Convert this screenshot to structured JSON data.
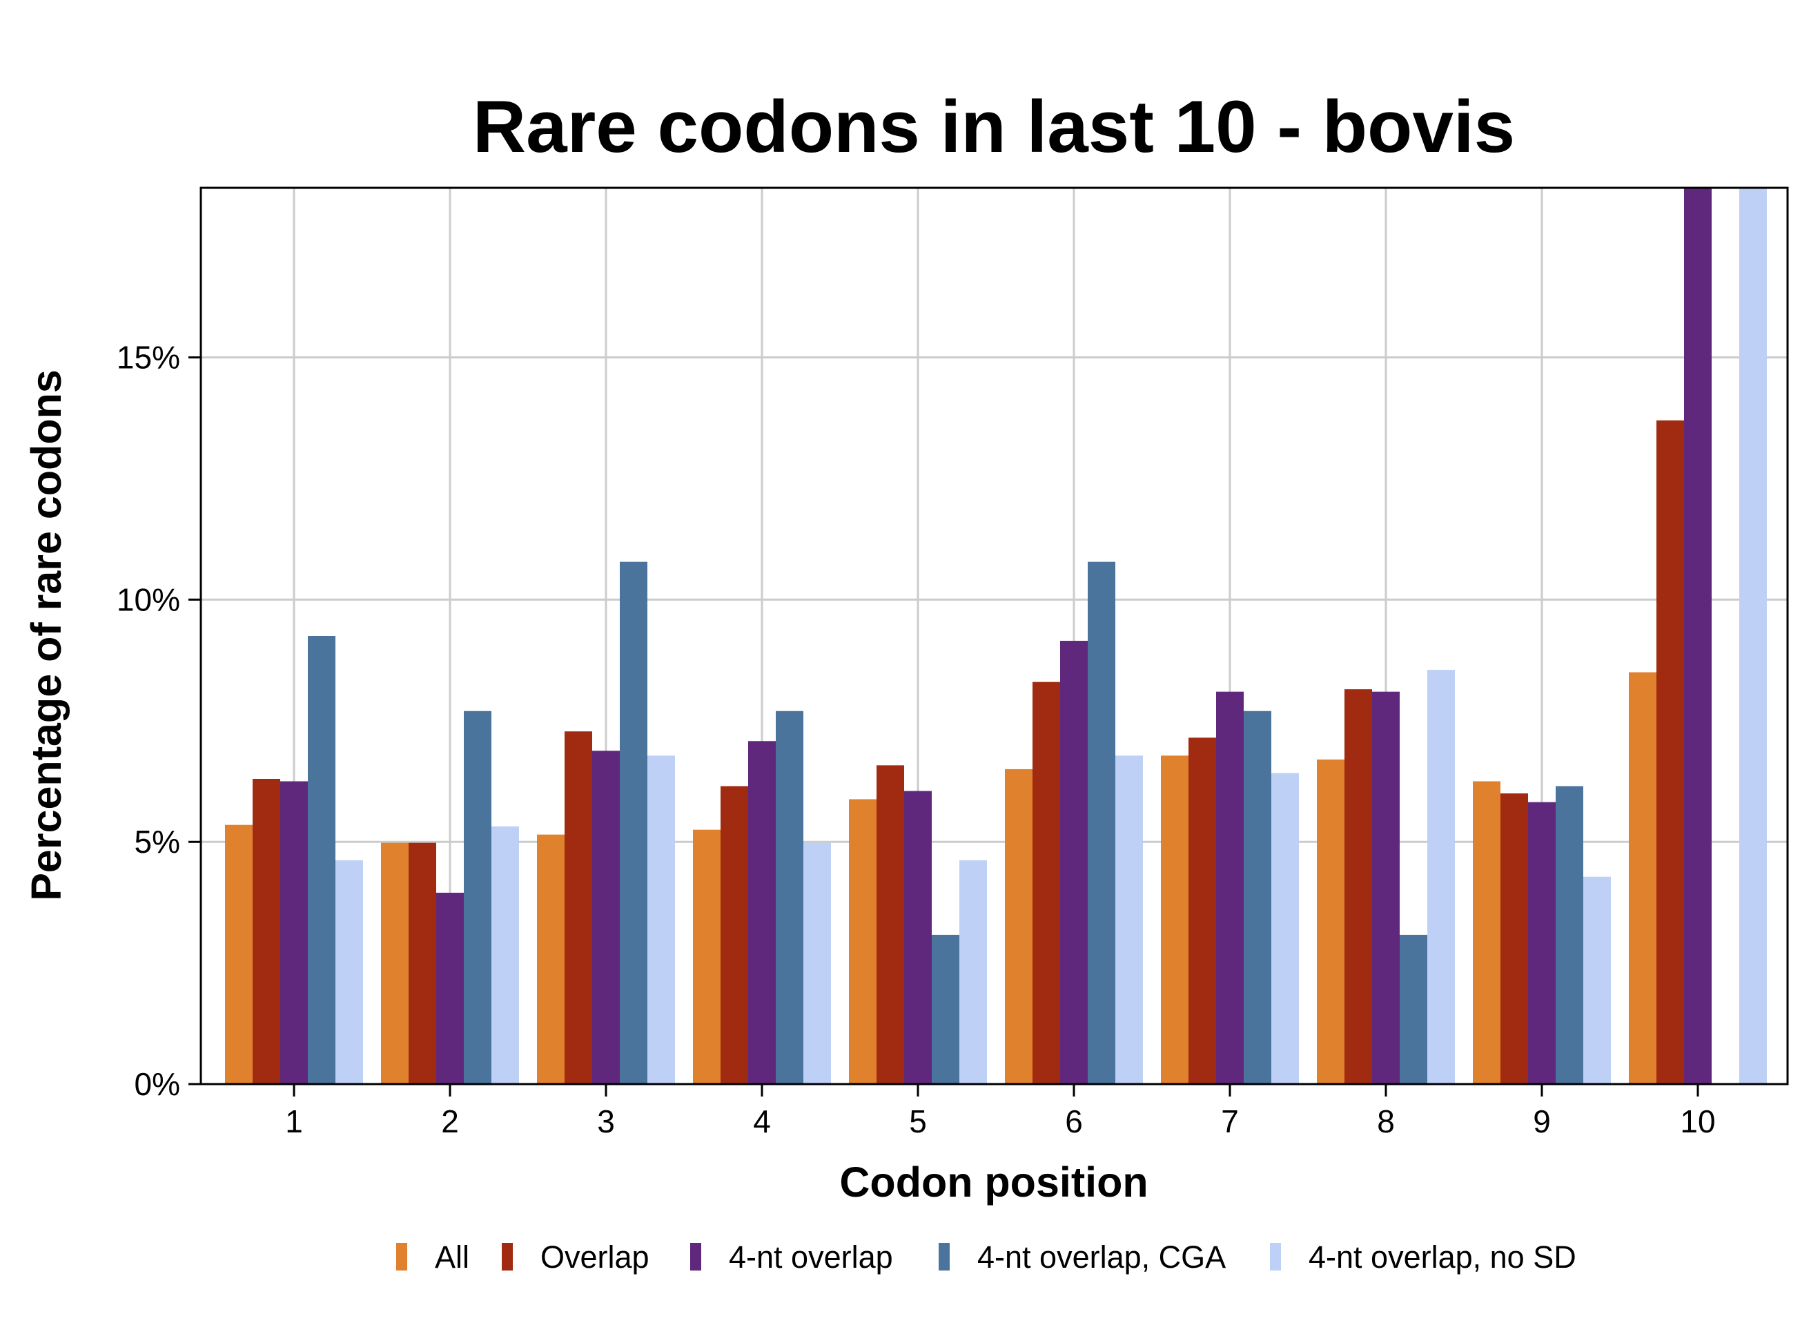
{
  "chart_data": {
    "type": "bar",
    "title": "Rare codons in last 10 - bovis",
    "xlabel": "Codon position",
    "ylabel": "Percentage of rare codons",
    "categories": [
      "1",
      "2",
      "3",
      "4",
      "5",
      "6",
      "7",
      "8",
      "9",
      "10"
    ],
    "ylim": [
      0,
      18.5
    ],
    "yticks": [
      0,
      5,
      10,
      15
    ],
    "ytick_labels": [
      "0%",
      "5%",
      "10%",
      "15%"
    ],
    "grid": true,
    "legend_position": "bottom",
    "series": [
      {
        "name": "All",
        "color": "#E0812E",
        "values": [
          5.35,
          4.98,
          5.15,
          5.25,
          5.88,
          6.5,
          6.78,
          6.7,
          6.25,
          8.5
        ]
      },
      {
        "name": "Overlap",
        "color": "#A02B10",
        "values": [
          6.3,
          4.98,
          7.28,
          6.15,
          6.58,
          8.3,
          7.15,
          8.15,
          6.0,
          13.7
        ]
      },
      {
        "name": "4-nt overlap",
        "color": "#60287C",
        "values": [
          6.25,
          3.95,
          6.88,
          7.08,
          6.05,
          9.15,
          8.1,
          8.1,
          5.82,
          18.5
        ]
      },
      {
        "name": "4-nt overlap, CGA",
        "color": "#4A749C",
        "values": [
          9.25,
          7.7,
          10.78,
          7.7,
          3.08,
          10.78,
          7.7,
          3.08,
          6.15,
          0
        ]
      },
      {
        "name": "4-nt overlap, no SD",
        "color": "#BED0F6",
        "values": [
          4.62,
          5.32,
          6.78,
          4.98,
          4.62,
          6.78,
          6.42,
          8.55,
          4.28,
          18.5
        ]
      }
    ]
  }
}
